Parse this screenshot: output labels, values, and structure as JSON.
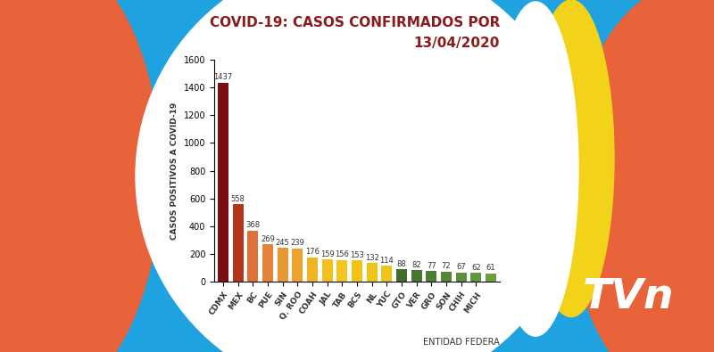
{
  "chart_data": {
    "type": "bar",
    "title": "COVID-19: CASOS CONFIRMADOS POR",
    "subtitle": "13/04/2020",
    "y_label": "CASOS POSITIVOS A COVID-19",
    "x_label": "ENTIDAD FEDERA",
    "annotations": [
      "TVn"
    ],
    "categories": [
      "CDMX",
      "MEX",
      "BC",
      "PUE",
      "SIN",
      "Q. ROO",
      "COAH",
      "JAL",
      "TAB",
      "BCS",
      "NL",
      "YUC",
      "GTO",
      "VER",
      "GRO",
      "SON",
      "CHIH",
      "MICH",
      null
    ],
    "values": [
      1437,
      558,
      368,
      269,
      245,
      239,
      176,
      159,
      156,
      153,
      132,
      114,
      88,
      82,
      77,
      72,
      67,
      62,
      61
    ],
    "colors": [
      "#7a0f12",
      "#b5341c",
      "#e0703a",
      "#e5833a",
      "#e99530",
      "#eca22b",
      "#f0b323",
      "#f4c01c",
      "#f5c418",
      "#f3c417",
      "#f1c516",
      "#eec51a",
      "#3f6e2a",
      "#467630",
      "#4d7e33",
      "#548636",
      "#5c8e39",
      "#64963c",
      "#6c9e40"
    ],
    "ylim": [
      0,
      1600
    ],
    "yticks": [
      0,
      200,
      400,
      600,
      800,
      1000,
      1200,
      1400,
      1600
    ],
    "data_labels": true,
    "grid": false,
    "tick_labels": true
  }
}
